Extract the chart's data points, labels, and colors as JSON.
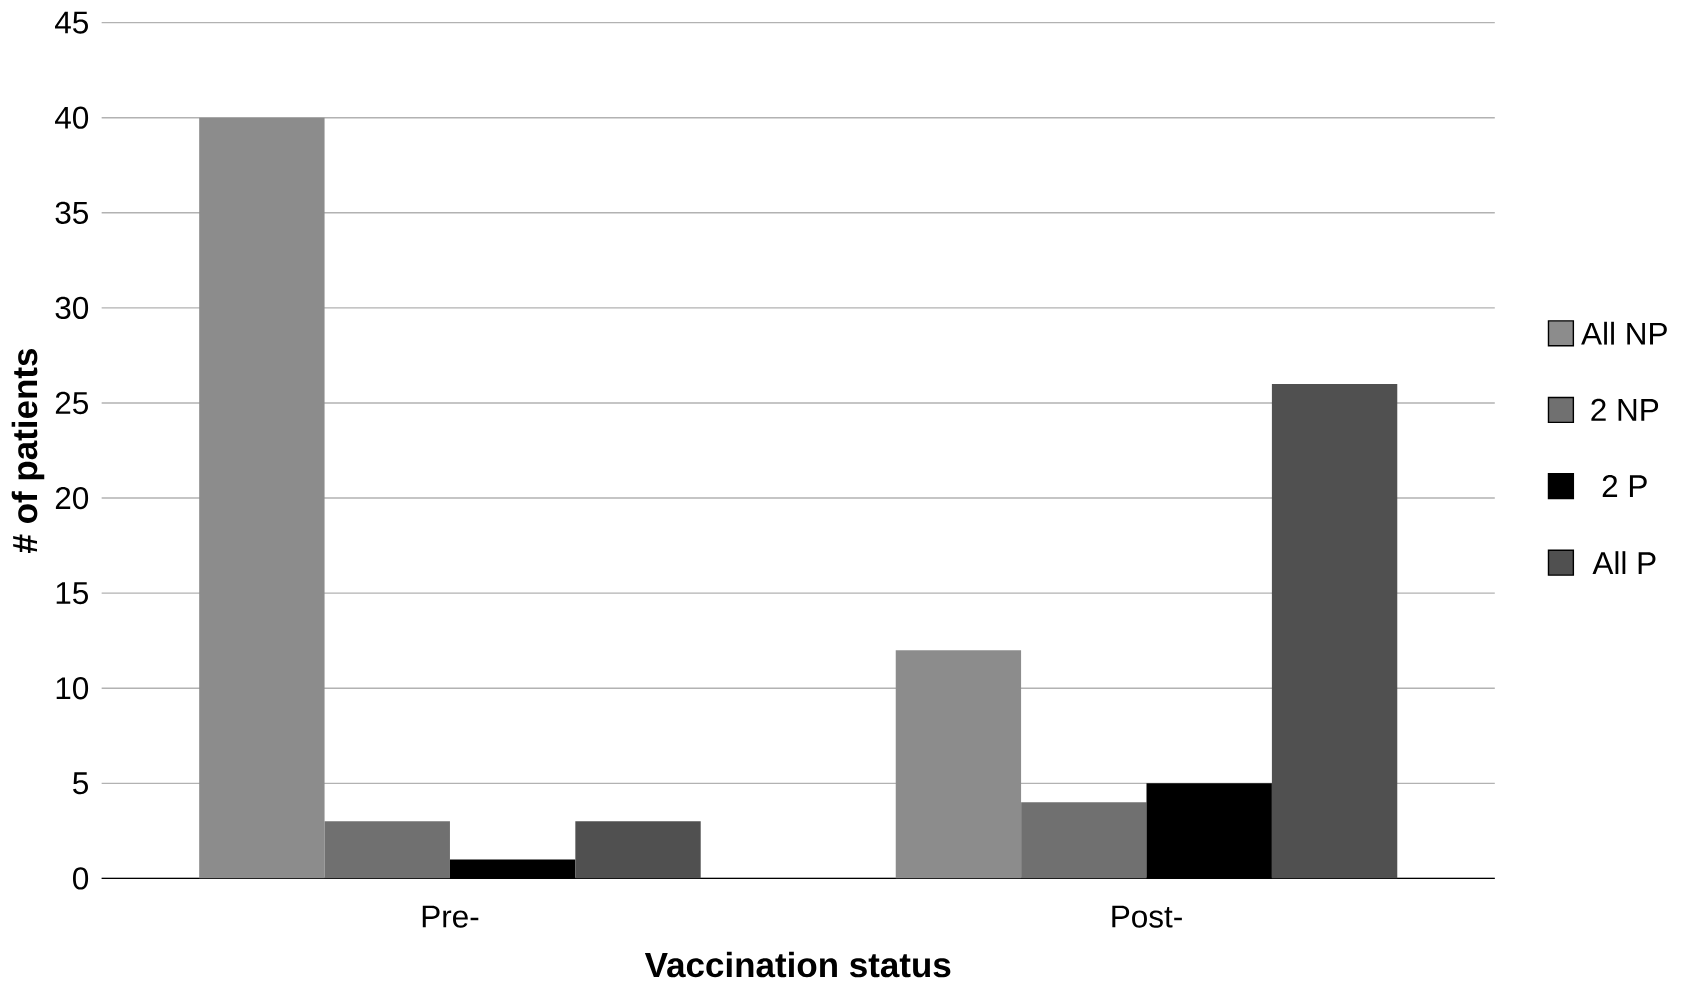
{
  "chart_data": {
    "type": "bar",
    "xlabel": "Vaccination status",
    "ylabel": "# of patients",
    "categories": [
      "Pre-",
      "Post-"
    ],
    "series": [
      {
        "name": "All NP",
        "color": "#8c8c8c",
        "values": [
          40,
          12
        ]
      },
      {
        "name": "2 NP",
        "color": "#707070",
        "values": [
          3,
          4
        ]
      },
      {
        "name": "2 P",
        "color": "#000000",
        "values": [
          1,
          5
        ]
      },
      {
        "name": "All P",
        "color": "#505050",
        "values": [
          3,
          26
        ]
      }
    ],
    "ylim": [
      0,
      45
    ],
    "yticks": [
      0,
      5,
      10,
      15,
      20,
      25,
      30,
      35,
      40,
      45
    ],
    "grid": "y",
    "legend": "right"
  }
}
